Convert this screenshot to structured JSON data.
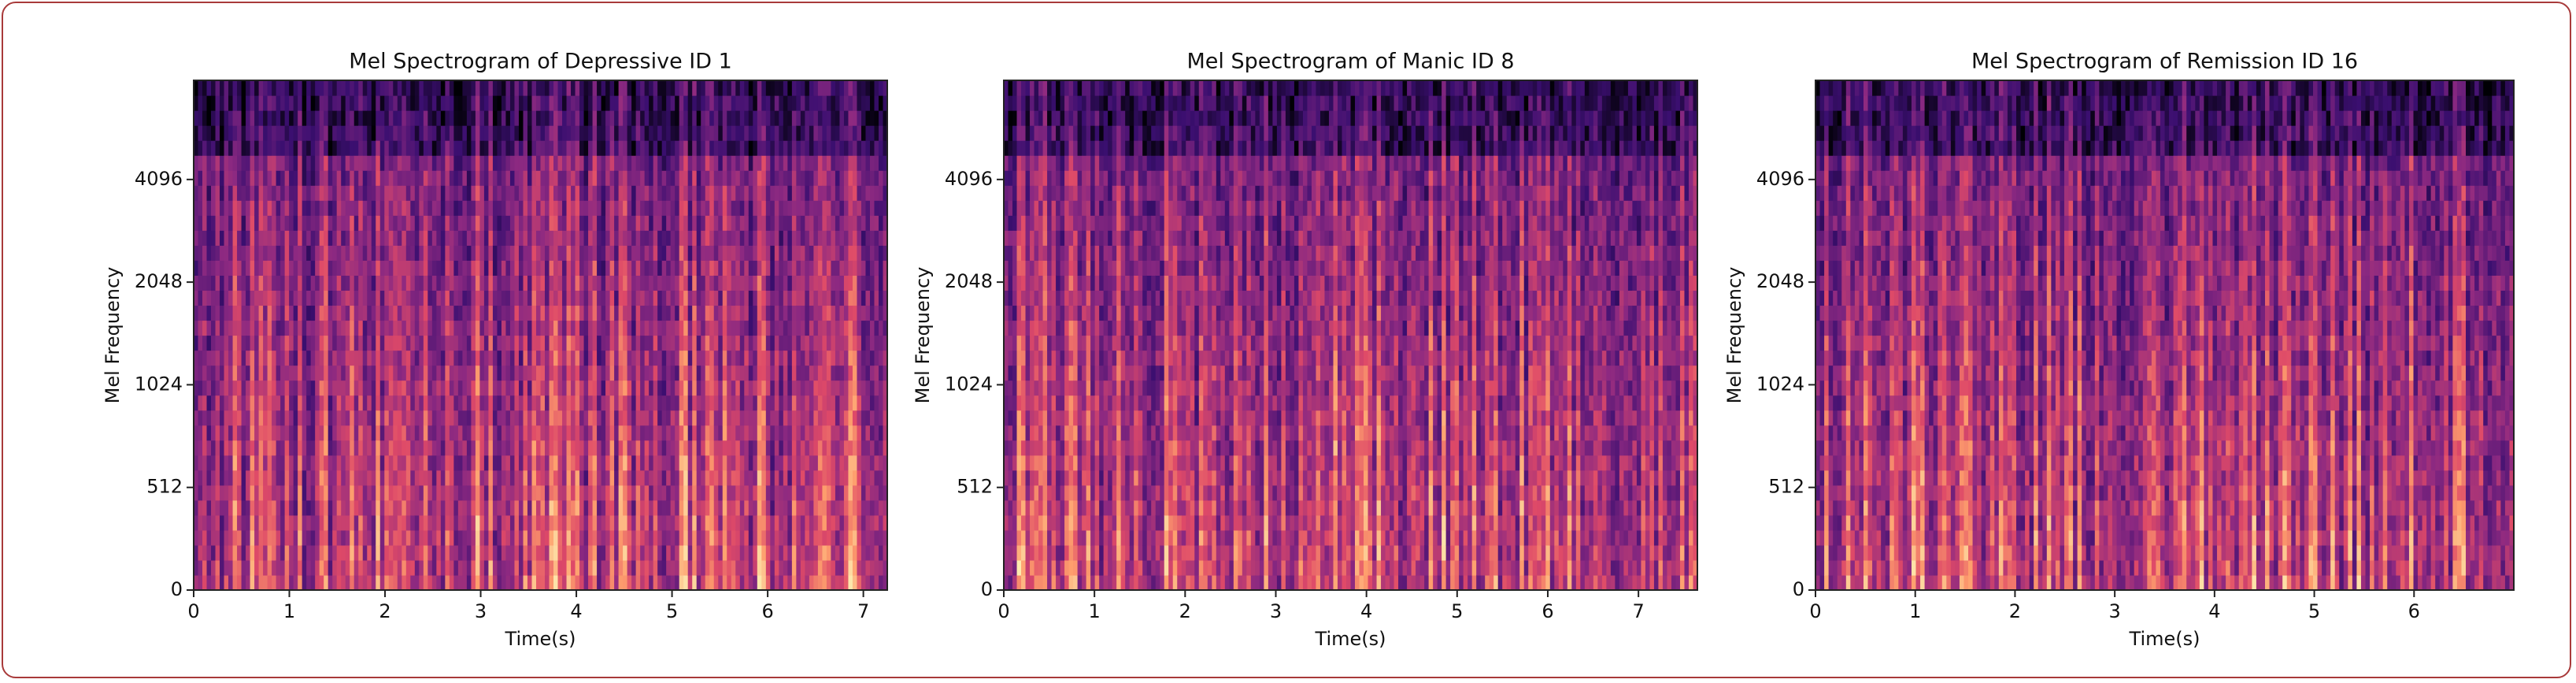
{
  "chart_data": [
    {
      "type": "spectrogram",
      "title": "Mel Spectrogram of Depressive ID 1",
      "x_label": "Time(s)",
      "y_label": "Mel Frequency",
      "xlim": [
        0,
        7.25
      ],
      "xticks": [
        0,
        1,
        2,
        3,
        4,
        5,
        6,
        7
      ],
      "ylim": [
        0,
        8000
      ],
      "yticks": [
        0,
        512,
        1024,
        2048,
        4096
      ],
      "yscale": "symlog2",
      "linthresh": 512
    },
    {
      "type": "spectrogram",
      "title": "Mel Spectrogram of Manic ID 8",
      "x_label": "Time(s)",
      "y_label": "Mel Frequency",
      "xlim": [
        0,
        7.65
      ],
      "xticks": [
        0,
        1,
        2,
        3,
        4,
        5,
        6,
        7
      ],
      "ylim": [
        0,
        8000
      ],
      "yticks": [
        0,
        512,
        1024,
        2048,
        4096
      ],
      "yscale": "symlog2",
      "linthresh": 512
    },
    {
      "type": "spectrogram",
      "title": "Mel Spectrogram of Remission ID 16",
      "x_label": "Time(s)",
      "y_label": "Mel Frequency",
      "xlim": [
        0,
        7.0
      ],
      "xticks": [
        0,
        1,
        2,
        3,
        4,
        5,
        6
      ],
      "ylim": [
        0,
        8000
      ],
      "yticks": [
        0,
        512,
        1024,
        2048,
        4096
      ],
      "yscale": "symlog2",
      "linthresh": 512
    }
  ]
}
